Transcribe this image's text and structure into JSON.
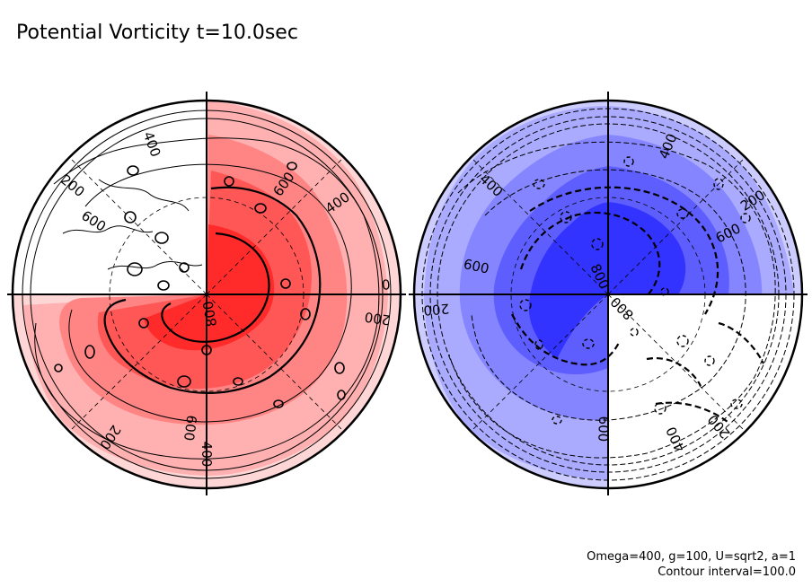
{
  "title": "Potential Vorticity t=10.0sec",
  "parameters": "Omega=400, g=100, U=sqrt2, a=1",
  "contour_interval": "Contour interval=100.0",
  "colors": {
    "north_shades": [
      "#ffffff",
      "#ffd6d6",
      "#ffb0b0",
      "#ff8585",
      "#ff5656",
      "#ff2a2a"
    ],
    "south_shades": [
      "#ffffff",
      "#ccccff",
      "#aaaaff",
      "#8585ff",
      "#5e5eff",
      "#3333ff"
    ]
  },
  "hemispheres": [
    {
      "name": "north",
      "labels": [
        {
          "text": "400",
          "angle": -20
        },
        {
          "text": "200",
          "angle": -51
        },
        {
          "text": "600",
          "angle": -57
        },
        {
          "text": "0",
          "angle": 87
        },
        {
          "text": "400",
          "angle": 55
        },
        {
          "text": "600",
          "angle": 35
        },
        {
          "text": "200",
          "angle": 98
        },
        {
          "text": "800",
          "angle": 170
        },
        {
          "text": "600",
          "angle": 187
        },
        {
          "text": "400",
          "angle": 180
        },
        {
          "text": "200",
          "angle": 214
        }
      ]
    },
    {
      "name": "south",
      "labels": [
        {
          "text": "400",
          "angle": 22
        },
        {
          "text": "200",
          "angle": 57
        },
        {
          "text": "400",
          "angle": -47
        },
        {
          "text": "600",
          "angle": 63
        },
        {
          "text": "600",
          "angle": -78
        },
        {
          "text": "800",
          "angle": -25
        },
        {
          "text": "200",
          "angle": -95
        },
        {
          "text": "800",
          "angle": 135
        },
        {
          "text": "600",
          "angle": 182
        },
        {
          "text": "400",
          "angle": 155
        },
        {
          "text": "200",
          "angle": 140
        }
      ]
    }
  ]
}
